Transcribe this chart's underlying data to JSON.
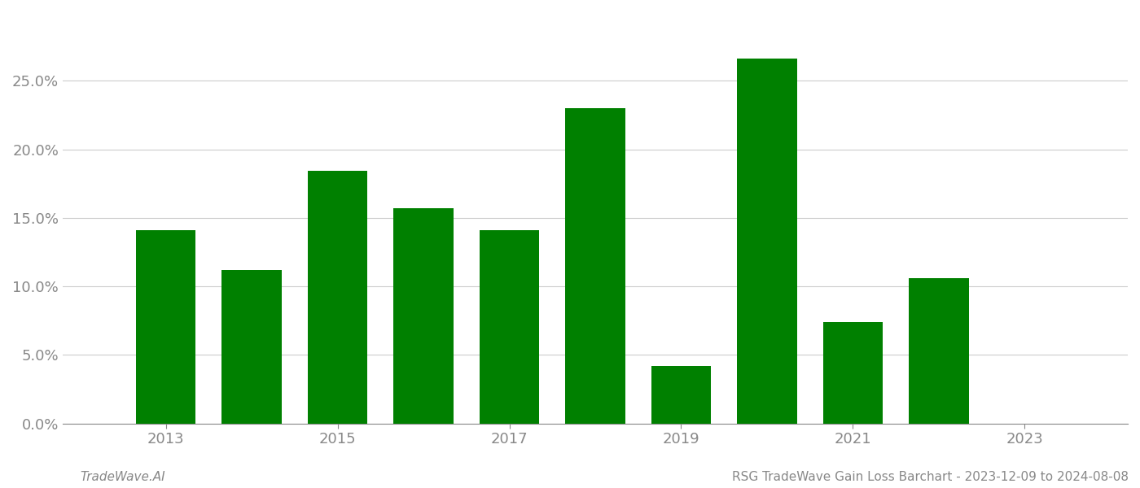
{
  "years": [
    2013,
    2014,
    2015,
    2016,
    2017,
    2018,
    2019,
    2020,
    2021,
    2022,
    2023
  ],
  "values": [
    0.141,
    0.112,
    0.184,
    0.157,
    0.141,
    0.23,
    0.042,
    0.266,
    0.074,
    0.106,
    0.0
  ],
  "bar_color": "#008000",
  "background_color": "#ffffff",
  "grid_color": "#cccccc",
  "axis_label_color": "#888888",
  "tick_label_color": "#888888",
  "footer_left": "TradeWave.AI",
  "footer_right": "RSG TradeWave Gain Loss Barchart - 2023-12-09 to 2024-08-08",
  "footer_color": "#888888",
  "footer_fontsize": 11,
  "ylim": [
    0,
    0.3
  ],
  "yticks": [
    0.0,
    0.05,
    0.1,
    0.15,
    0.2,
    0.25
  ],
  "xtick_labels": [
    "2013",
    "2015",
    "2017",
    "2019",
    "2021",
    "2023"
  ],
  "xtick_years": [
    2013,
    2015,
    2017,
    2019,
    2021,
    2023
  ],
  "bar_width": 0.7,
  "xlim_left": 2011.8,
  "xlim_right": 2024.2
}
